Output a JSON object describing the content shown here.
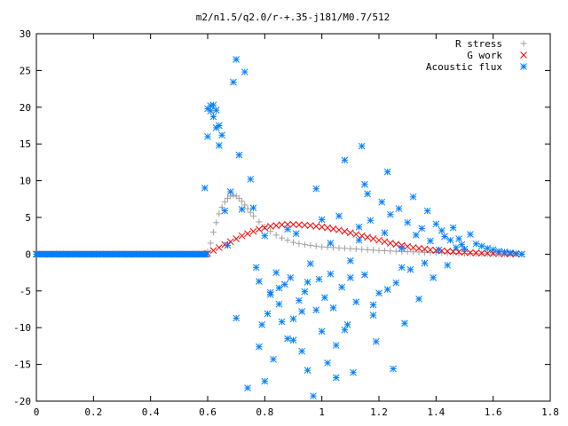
{
  "chart_data": {
    "type": "scatter",
    "title": "m2/n1.5/q2.0/r-+.35-j181/M0.7/512",
    "xlabel": "",
    "ylabel": "",
    "xlim": [
      0,
      1.8
    ],
    "ylim": [
      -20,
      30
    ],
    "xticks": [
      0,
      0.2,
      0.4,
      0.6,
      0.8,
      1,
      1.2,
      1.4,
      1.6,
      1.8
    ],
    "xtick_labels": [
      "0",
      "0.2",
      "0.4",
      "0.6",
      "0.8",
      "1",
      "1.2",
      "1.4",
      "1.6",
      "1.8"
    ],
    "yticks": [
      -20,
      -15,
      -10,
      -5,
      0,
      5,
      10,
      15,
      20,
      25,
      30
    ],
    "ytick_labels": [
      "-20",
      "-15",
      "-10",
      "-5",
      "0",
      "5",
      "10",
      "15",
      "20",
      "25",
      "30"
    ],
    "grid": false,
    "legend_position": "top-right",
    "series": [
      {
        "name": "R stress",
        "marker": "plus",
        "color": "#a0a0a0",
        "x": [
          0.0,
          0.1,
          0.2,
          0.3,
          0.4,
          0.5,
          0.58,
          0.6,
          0.61,
          0.62,
          0.63,
          0.64,
          0.65,
          0.66,
          0.67,
          0.68,
          0.69,
          0.7,
          0.71,
          0.72,
          0.73,
          0.74,
          0.75,
          0.76,
          0.78,
          0.8,
          0.82,
          0.84,
          0.86,
          0.88,
          0.9,
          0.92,
          0.94,
          0.96,
          0.98,
          1.0,
          1.02,
          1.04,
          1.06,
          1.08,
          1.1,
          1.12,
          1.14,
          1.16,
          1.18,
          1.2,
          1.22,
          1.24,
          1.26,
          1.28,
          1.3,
          1.32,
          1.34,
          1.36,
          1.38,
          1.4,
          1.42,
          1.44,
          1.46,
          1.48,
          1.5,
          1.52,
          1.54,
          1.56,
          1.58,
          1.6,
          1.62,
          1.64,
          1.66,
          1.68,
          1.7
        ],
        "y": [
          0,
          0,
          0,
          0,
          0,
          0,
          0,
          0.3,
          1.5,
          3.0,
          4.3,
          5.5,
          6.4,
          7.1,
          7.6,
          7.9,
          8.0,
          7.9,
          7.6,
          7.2,
          6.7,
          6.2,
          5.7,
          5.2,
          4.4,
          3.7,
          3.1,
          2.6,
          2.2,
          1.9,
          1.6,
          1.45,
          1.3,
          1.2,
          1.1,
          1.0,
          0.95,
          0.9,
          0.85,
          0.8,
          0.75,
          0.7,
          0.65,
          0.6,
          0.55,
          0.5,
          0.47,
          0.43,
          0.4,
          0.37,
          0.34,
          0.31,
          0.28,
          0.25,
          0.22,
          0.2,
          0.18,
          0.16,
          0.14,
          0.12,
          0.1,
          0.09,
          0.08,
          0.07,
          0.06,
          0.05,
          0.04,
          0.03,
          0.02,
          0.01,
          0.0
        ]
      },
      {
        "name": "G work",
        "marker": "cross",
        "color": "#ff0000",
        "x": [
          0.0,
          0.1,
          0.2,
          0.3,
          0.4,
          0.5,
          0.58,
          0.6,
          0.62,
          0.64,
          0.66,
          0.68,
          0.7,
          0.72,
          0.74,
          0.76,
          0.78,
          0.8,
          0.82,
          0.84,
          0.86,
          0.88,
          0.9,
          0.92,
          0.94,
          0.96,
          0.98,
          1.0,
          1.02,
          1.04,
          1.06,
          1.08,
          1.1,
          1.12,
          1.14,
          1.16,
          1.18,
          1.2,
          1.22,
          1.24,
          1.26,
          1.28,
          1.3,
          1.32,
          1.34,
          1.36,
          1.38,
          1.4,
          1.42,
          1.44,
          1.46,
          1.48,
          1.5,
          1.52,
          1.54,
          1.56,
          1.58,
          1.6,
          1.62,
          1.64,
          1.66,
          1.68,
          1.7
        ],
        "y": [
          0,
          0,
          0,
          0,
          0,
          0,
          0,
          0.1,
          0.5,
          0.9,
          1.3,
          1.7,
          2.1,
          2.5,
          2.8,
          3.1,
          3.4,
          3.6,
          3.8,
          3.9,
          4.0,
          4.05,
          4.05,
          4.0,
          3.95,
          3.9,
          3.8,
          3.7,
          3.6,
          3.45,
          3.3,
          3.1,
          2.9,
          2.7,
          2.5,
          2.3,
          2.1,
          1.9,
          1.7,
          1.5,
          1.35,
          1.2,
          1.05,
          0.9,
          0.8,
          0.7,
          0.6,
          0.5,
          0.45,
          0.4,
          0.35,
          0.3,
          0.25,
          0.2,
          0.17,
          0.14,
          0.11,
          0.09,
          0.07,
          0.05,
          0.03,
          0.02,
          0.0
        ]
      },
      {
        "name": "Acoustic flux",
        "marker": "star",
        "color": "#0080ff",
        "x": [
          0.0,
          0.05,
          0.1,
          0.15,
          0.2,
          0.25,
          0.3,
          0.35,
          0.4,
          0.45,
          0.5,
          0.55,
          0.59,
          0.6,
          0.6,
          0.61,
          0.61,
          0.62,
          0.62,
          0.63,
          0.63,
          0.64,
          0.64,
          0.65,
          0.66,
          0.67,
          0.68,
          0.69,
          0.7,
          0.71,
          0.73,
          0.75,
          0.76,
          0.77,
          0.78,
          0.79,
          0.8,
          0.81,
          0.82,
          0.83,
          0.84,
          0.85,
          0.86,
          0.87,
          0.88,
          0.89,
          0.9,
          0.91,
          0.92,
          0.93,
          0.94,
          0.95,
          0.96,
          0.97,
          0.98,
          0.99,
          1.0,
          1.01,
          1.02,
          1.03,
          1.04,
          1.05,
          1.06,
          1.07,
          1.08,
          1.09,
          1.1,
          1.11,
          1.12,
          1.13,
          1.14,
          1.15,
          1.16,
          1.17,
          1.18,
          1.19,
          1.2,
          1.21,
          1.22,
          1.23,
          1.24,
          1.25,
          1.26,
          1.27,
          1.28,
          1.29,
          1.3,
          1.31,
          1.32,
          1.33,
          1.34,
          1.35,
          1.36,
          1.37,
          1.38,
          1.39,
          1.4,
          1.41,
          1.42,
          1.43,
          1.44,
          1.45,
          1.46,
          1.47,
          1.48,
          1.49,
          1.5,
          1.52,
          1.54,
          1.56,
          1.58,
          1.6,
          1.62,
          1.64,
          1.66,
          1.68,
          1.7,
          0.7,
          0.74,
          0.8,
          0.85,
          0.9,
          0.95,
          1.0,
          1.05,
          1.1,
          1.15,
          0.72,
          0.78,
          0.82,
          0.88,
          0.93,
          0.98,
          1.03,
          1.08,
          1.13,
          1.18,
          1.23,
          1.28
        ],
        "y": [
          0,
          0,
          0,
          0,
          0,
          0,
          0,
          0,
          0,
          0,
          0,
          0,
          9,
          16,
          19.8,
          20.2,
          19.5,
          20.3,
          18.7,
          19.6,
          17.2,
          17.5,
          14.8,
          16.2,
          5.9,
          1.2,
          8.5,
          23.4,
          26.5,
          13.5,
          24.8,
          10.2,
          6.3,
          -1.8,
          -3.7,
          -9.6,
          -17.3,
          -8.1,
          -5.2,
          -14.3,
          -2.5,
          -6.8,
          -9.2,
          -4.1,
          -11.5,
          -3.2,
          -8.8,
          2.8,
          -6.3,
          -13.2,
          -5.1,
          -15.8,
          -1.3,
          -19.3,
          -7.6,
          -3.4,
          -10.5,
          -5.9,
          -14.8,
          1.5,
          -7.3,
          -12.4,
          5.2,
          -4.5,
          12.8,
          -9.6,
          -3.2,
          -16.1,
          -6.5,
          3.7,
          14.7,
          -2.8,
          8.2,
          4.6,
          -8.3,
          -11.9,
          -5.3,
          7.1,
          2.9,
          -4.8,
          5.4,
          -15.6,
          -3.9,
          6.2,
          0.8,
          -9.4,
          4.3,
          -2.1,
          7.8,
          2.6,
          -6.1,
          3.5,
          -1.2,
          5.9,
          1.8,
          -3.2,
          4.1,
          0.6,
          3.2,
          2.4,
          -1.5,
          1.9,
          3.6,
          0.9,
          2.1,
          1.3,
          0.7,
          2.7,
          1.4,
          1.1,
          0.8,
          0.6,
          0.4,
          0.3,
          0.2,
          0.1,
          0.0,
          -8.7,
          -18.2,
          2.5,
          -4.6,
          -11.7,
          -3.8,
          4.7,
          -16.8,
          -0.9,
          9.5,
          6.1,
          -12.6,
          -5.5,
          3.4,
          -7.8,
          8.9,
          -2.7,
          -10.3,
          1.9,
          -6.9,
          11.2,
          -1.8
        ]
      }
    ]
  }
}
